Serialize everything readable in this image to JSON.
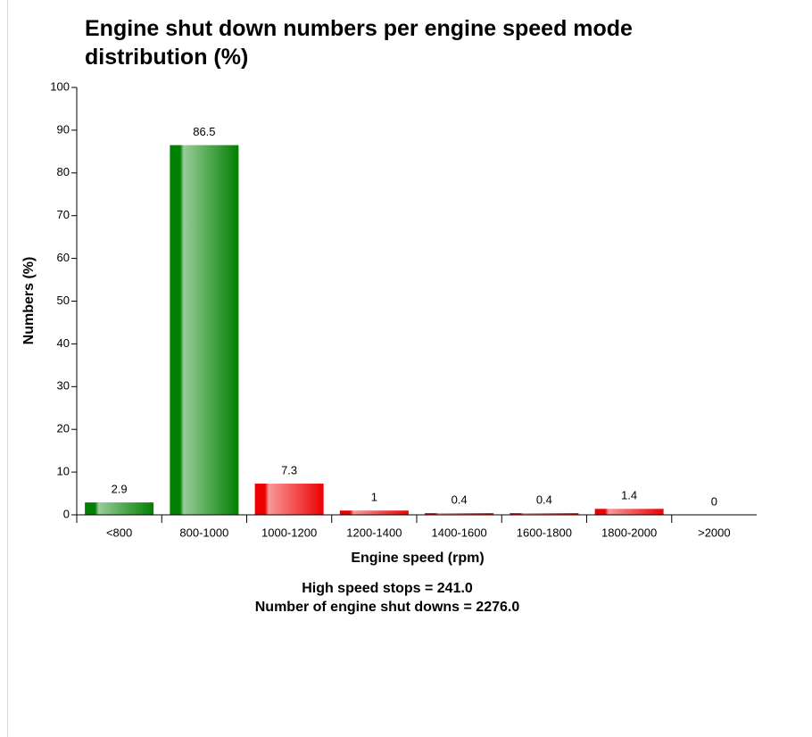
{
  "chart_data": {
    "type": "bar",
    "title": "Engine shut down numbers per engine speed mode distribution (%)",
    "x_label": "Engine speed (rpm)",
    "y_label": "Numbers (%)",
    "annotations": [
      "High speed stops = 241.0",
      "Number of engine shut downs = 2276.0"
    ],
    "categories": [
      "<800",
      "800-1000",
      "1000-1200",
      "1200-1400",
      "1400-1600",
      "1600-1800",
      "1800-2000",
      ">2000"
    ],
    "values": [
      2.9,
      86.5,
      7.3,
      1,
      0.4,
      0.4,
      1.4,
      0
    ],
    "colors": [
      "#008000",
      "#008000",
      "#ee0000",
      "#ee0000",
      "#ee0000",
      "#ee0000",
      "#ee0000",
      "#ee0000"
    ],
    "ylim": [
      0,
      100
    ],
    "yticks": [
      0,
      10,
      20,
      30,
      40,
      50,
      60,
      70,
      80,
      90,
      100
    ]
  }
}
